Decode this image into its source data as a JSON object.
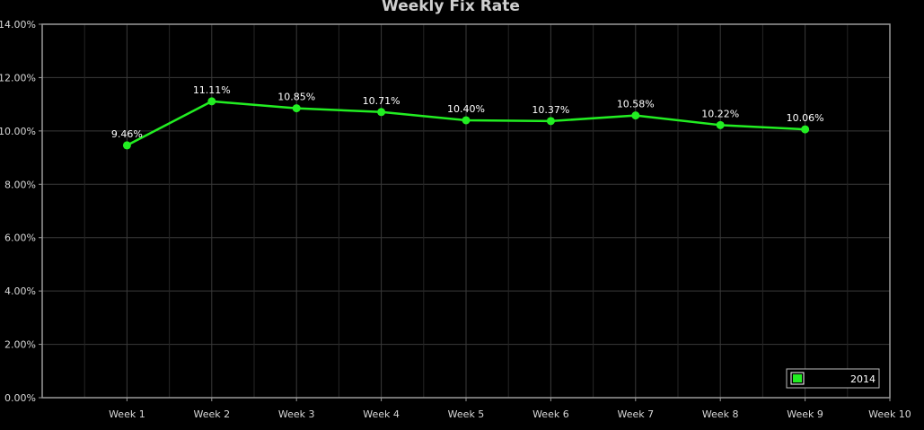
{
  "chart_data": {
    "type": "line",
    "title": "Weekly Fix Rate",
    "xlabel": "",
    "ylabel": "",
    "categories": [
      "Week 1",
      "Week 2",
      "Week 3",
      "Week 4",
      "Week 5",
      "Week 6",
      "Week 7",
      "Week 8",
      "Week 9",
      "Week 10"
    ],
    "series": [
      {
        "name": "2014",
        "values": [
          9.46,
          11.11,
          10.85,
          10.71,
          10.4,
          10.37,
          10.58,
          10.22,
          10.06,
          null
        ]
      }
    ],
    "data_labels": [
      "9.46%",
      "11.11%",
      "10.85%",
      "10.71%",
      "10.40%",
      "10.37%",
      "10.58%",
      "10.22%",
      "10.06%"
    ],
    "ylim": [
      0,
      14
    ],
    "yticks": [
      0,
      2,
      4,
      6,
      8,
      10,
      12,
      14
    ],
    "ytick_labels": [
      "0.00%",
      "2.00%",
      "4.00%",
      "6.00%",
      "8.00%",
      "10.00%",
      "12.00%",
      "14.00%"
    ],
    "grid": true,
    "legend_position": "bottom-right",
    "colors": {
      "background": "#000000",
      "series": "#22ee22",
      "grid": "#3a3a3a",
      "axis": "#9a9a9a"
    }
  }
}
